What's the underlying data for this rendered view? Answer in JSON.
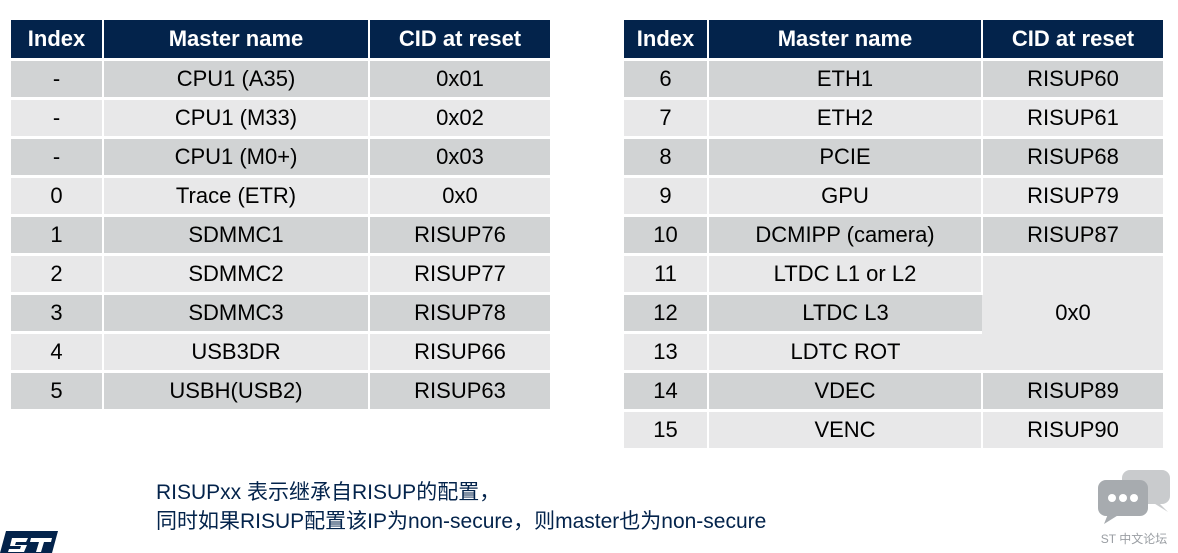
{
  "tables": {
    "left": {
      "headers": [
        "Index",
        "Master name",
        "CID at reset"
      ],
      "rows": [
        [
          "-",
          "CPU1 (A35)",
          "0x01"
        ],
        [
          "-",
          "CPU1 (M33)",
          "0x02"
        ],
        [
          "-",
          "CPU1 (M0+)",
          "0x03"
        ],
        [
          "0",
          "Trace (ETR)",
          "0x0"
        ],
        [
          "1",
          "SDMMC1",
          "RISUP76"
        ],
        [
          "2",
          "SDMMC2",
          "RISUP77"
        ],
        [
          "3",
          "SDMMC3",
          "RISUP78"
        ],
        [
          "4",
          "USB3DR",
          "RISUP66"
        ],
        [
          "5",
          "USBH(USB2)",
          "RISUP63"
        ]
      ]
    },
    "right": {
      "headers": [
        "Index",
        "Master name",
        "CID at reset"
      ],
      "rows": [
        [
          "6",
          "ETH1",
          "RISUP60"
        ],
        [
          "7",
          "ETH2",
          "RISUP61"
        ],
        [
          "8",
          "PCIE",
          "RISUP68"
        ],
        [
          "9",
          "GPU",
          "RISUP79"
        ],
        [
          "10",
          "DCMIPP (camera)",
          "RISUP87"
        ],
        [
          "11",
          "LTDC L1 or L2",
          "0x0"
        ],
        [
          "12",
          "LTDC L3",
          ""
        ],
        [
          "13",
          "LDTC ROT",
          ""
        ],
        [
          "14",
          "VDEC",
          "RISUP89"
        ],
        [
          "15",
          "VENC",
          "RISUP90"
        ]
      ]
    }
  },
  "note": {
    "line1": "RISUPxx 表示继承自RISUP的配置，",
    "line2": "同时如果RISUP配置该IP为non-secure，则master也为non-secure"
  },
  "branding": {
    "forum_label": "ST 中文论坛",
    "logo_icon": "st-logo-icon",
    "forum_icon": "chat-bubbles-icon"
  },
  "colors": {
    "header_bg": "#03234b",
    "row_dark": "#d1d3d4",
    "row_light": "#e8e8e9",
    "note_text": "#03234b"
  }
}
